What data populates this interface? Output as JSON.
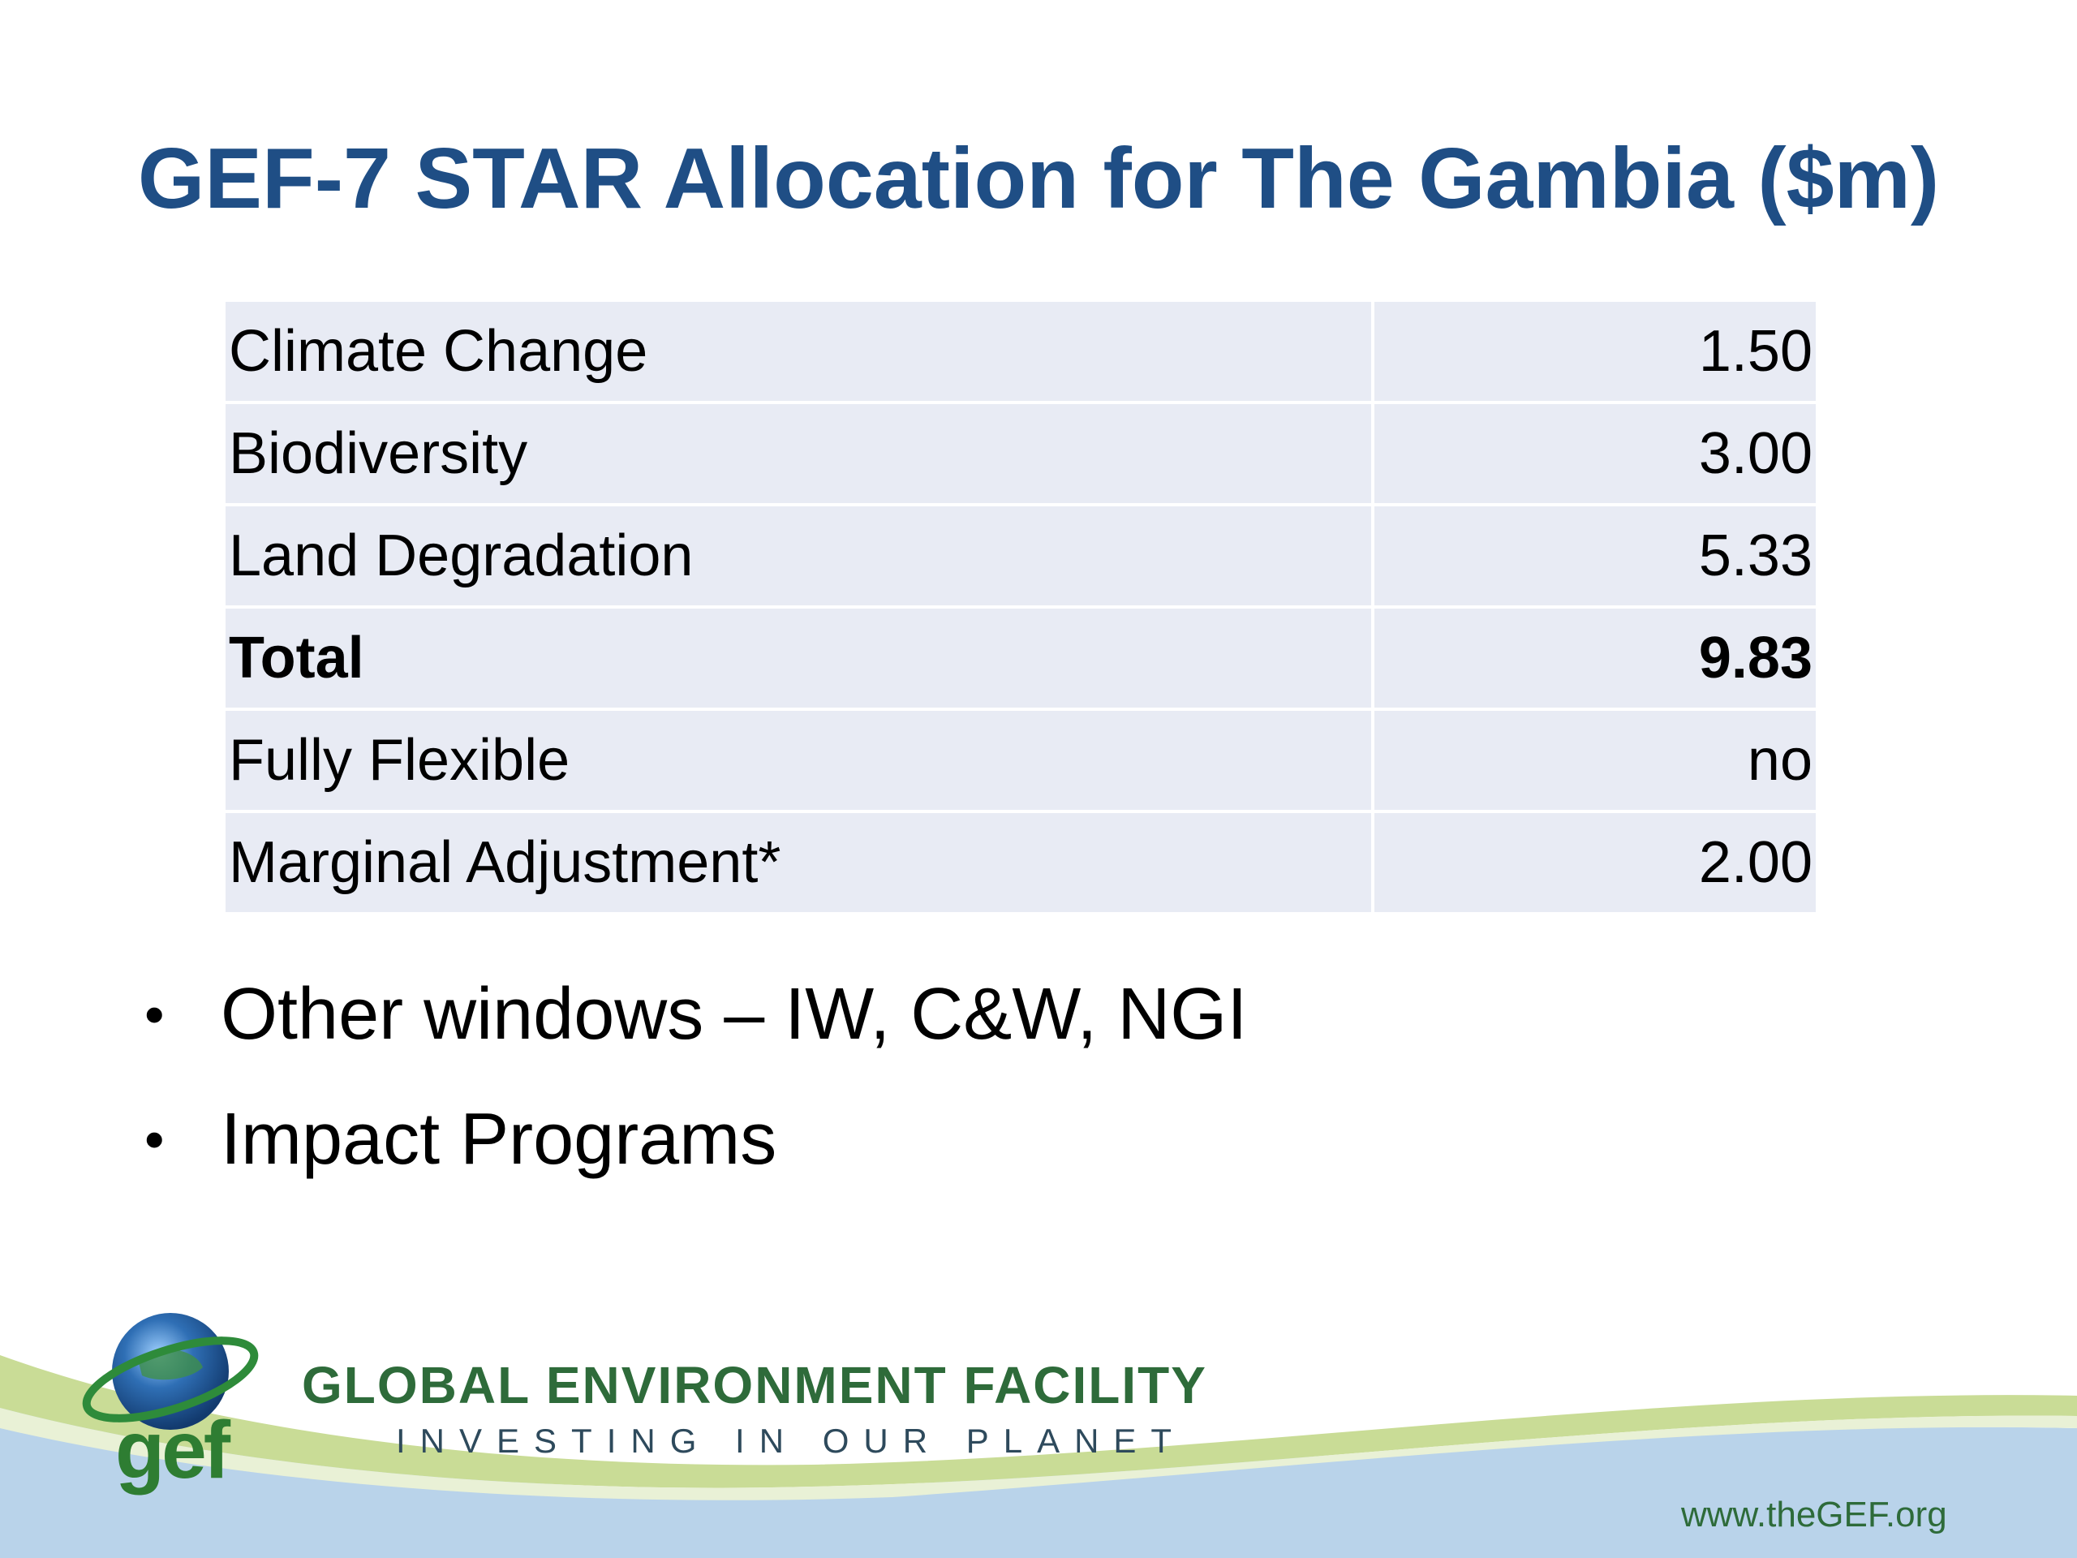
{
  "slide": {
    "title": "GEF-7 STAR Allocation for The Gambia ($m)"
  },
  "allocation_table": {
    "rows": [
      {
        "label": "Climate Change",
        "value": "1.50"
      },
      {
        "label": "Biodiversity",
        "value": "3.00"
      },
      {
        "label": "Land Degradation",
        "value": "5.33"
      },
      {
        "label": "Total",
        "value": "9.83",
        "bold": true
      },
      {
        "label": "Fully Flexible",
        "value": "no"
      },
      {
        "label": "Marginal Adjustment*",
        "value": "2.00"
      }
    ]
  },
  "bullets": [
    "Other windows – IW, C&W, NGI",
    "Impact Programs"
  ],
  "footer": {
    "logo_text": "gef",
    "org_name": "GLOBAL ENVIRONMENT FACILITY",
    "tagline": "INVESTING IN OUR PLANET",
    "url": "www.theGEF.org"
  },
  "colors": {
    "title": "#1f4e85",
    "table_cell": "#e8ebf4",
    "brand_green": "#2e6b3a",
    "footer_blue": "#b9d3ea",
    "footer_green": "#c9dc96"
  },
  "icons": [
    "globe-logo-icon"
  ]
}
